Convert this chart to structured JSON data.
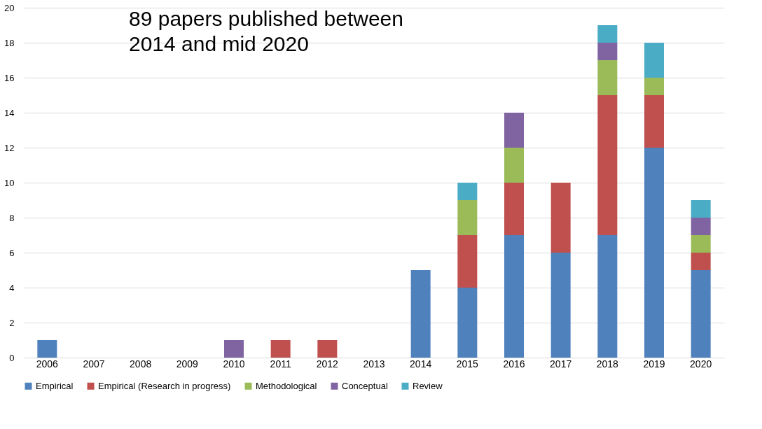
{
  "chart_data": {
    "type": "bar",
    "stacked": true,
    "categories": [
      "2006",
      "2007",
      "2008",
      "2009",
      "2010",
      "2011",
      "2012",
      "2013",
      "2014",
      "2015",
      "2016",
      "2017",
      "2018",
      "2019",
      "2020"
    ],
    "series": [
      {
        "name": "Empirical",
        "color": "#4f81bd",
        "values": [
          1,
          0,
          0,
          0,
          0,
          0,
          0,
          0,
          5,
          4,
          7,
          6,
          7,
          12,
          5
        ]
      },
      {
        "name": "Empirical (Research in progress)",
        "color": "#c0504d",
        "values": [
          0,
          0,
          0,
          0,
          0,
          1,
          1,
          0,
          0,
          3,
          3,
          4,
          8,
          3,
          1
        ]
      },
      {
        "name": "Methodological",
        "color": "#9bbb59",
        "values": [
          0,
          0,
          0,
          0,
          0,
          0,
          0,
          0,
          0,
          2,
          2,
          0,
          2,
          1,
          1
        ]
      },
      {
        "name": "Conceptual",
        "color": "#8064a2",
        "values": [
          0,
          0,
          0,
          0,
          1,
          0,
          0,
          0,
          0,
          0,
          2,
          0,
          1,
          0,
          1
        ]
      },
      {
        "name": "Review",
        "color": "#4bacc6",
        "values": [
          0,
          0,
          0,
          0,
          0,
          0,
          0,
          0,
          0,
          1,
          0,
          0,
          1,
          2,
          1
        ]
      }
    ],
    "ylim": [
      0,
      20
    ],
    "yticks": [
      0,
      2,
      4,
      6,
      8,
      10,
      12,
      14,
      16,
      18,
      20
    ],
    "grid": "y",
    "legend": "bottom",
    "annotations": [
      "89 papers published between\n2014 and mid 2020"
    ]
  }
}
